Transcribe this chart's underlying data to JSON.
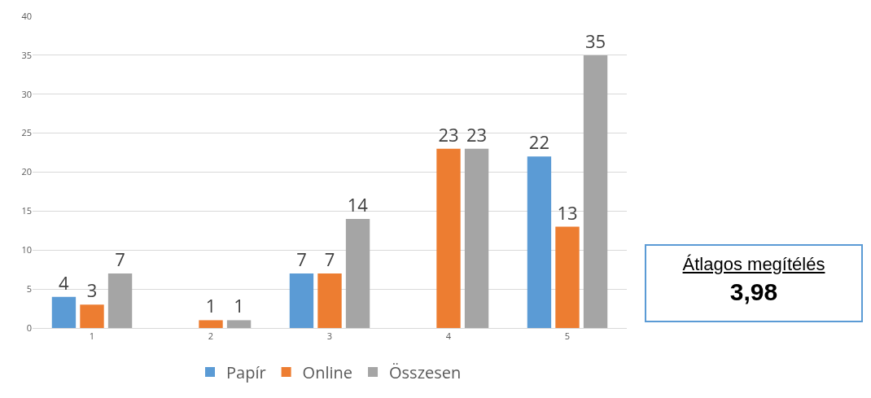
{
  "chart_data": {
    "type": "bar",
    "categories": [
      "1",
      "2",
      "3",
      "4",
      "5"
    ],
    "series": [
      {
        "name": "Papír",
        "color": "#5b9bd5",
        "values": [
          4,
          null,
          7,
          null,
          22
        ]
      },
      {
        "name": "Online",
        "color": "#ed7d31",
        "values": [
          3,
          1,
          7,
          23,
          13
        ]
      },
      {
        "name": "Összesen",
        "color": "#a5a5a5",
        "values": [
          7,
          1,
          14,
          23,
          35
        ]
      }
    ],
    "ylim": [
      0,
      40
    ],
    "yticks": [
      0,
      5,
      10,
      15,
      20,
      25,
      30,
      35,
      40
    ],
    "grid": "y",
    "legend": "bottom",
    "data_labels": true,
    "annotations": [
      "Átlagos megítélés",
      "3,98"
    ]
  }
}
